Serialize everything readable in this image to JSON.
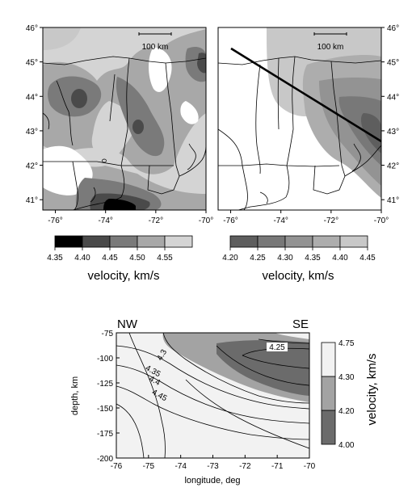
{
  "chart_data": [
    {
      "type": "heatmap",
      "panel": "map-left",
      "xlim": [
        -76.5,
        -70
      ],
      "ylim": [
        40.7,
        46
      ],
      "xticks": [
        "-76°",
        "-74°",
        "-72°",
        "-70°"
      ],
      "yticks": [
        "46°",
        "45°",
        "44°",
        "43°",
        "42°",
        "41°"
      ],
      "scale_label": "100 km",
      "legend": {
        "bins": [
          4.35,
          4.4,
          4.45,
          4.5,
          4.55
        ],
        "tick_labels": [
          "4.35",
          "4.40",
          "4.45",
          "4.50",
          "4.55"
        ],
        "colors": [
          "#000000",
          "#4a4a4a",
          "#7a7a7a",
          "#a8a8a8",
          "#d4d4d4"
        ],
        "label": "velocity, km/s"
      }
    },
    {
      "type": "heatmap",
      "panel": "map-right",
      "xlim": [
        -76.5,
        -70
      ],
      "ylim": [
        40.7,
        46
      ],
      "xticks": [
        "-76°",
        "-74°",
        "-72°",
        "-70°"
      ],
      "yticks": [
        "46°",
        "45°",
        "44°",
        "43°",
        "42°",
        "41°"
      ],
      "scale_label": "100 km",
      "legend": {
        "bins": [
          4.2,
          4.25,
          4.3,
          4.35,
          4.4,
          4.45
        ],
        "tick_labels": [
          "4.20",
          "4.25",
          "4.30",
          "4.35",
          "4.40",
          "4.45"
        ],
        "colors": [
          "#5e5e5e",
          "#787878",
          "#939393",
          "#adadad",
          "#c8c8c8"
        ],
        "label": "velocity, km/s"
      }
    },
    {
      "type": "heatmap",
      "panel": "cross-section",
      "corner_labels": {
        "left": "NW",
        "right": "SE"
      },
      "xlabel": "longitude, deg",
      "ylabel": "depth, km",
      "xlim": [
        -76,
        -70
      ],
      "ylim": [
        -200,
        -75
      ],
      "xticks": [
        "-76",
        "-75",
        "-74",
        "-73",
        "-72",
        "-71",
        "-70"
      ],
      "yticks": [
        "-75",
        "-100",
        "-125",
        "-150",
        "-175",
        "-200"
      ],
      "contour_labels": [
        "4.3",
        "4.35",
        "4.4",
        "4.45",
        "4.25"
      ],
      "legend": {
        "bins": [
          4.0,
          4.2,
          4.3,
          4.75
        ],
        "tick_labels": [
          "4.75",
          "4.30",
          "4.20",
          "4.00"
        ],
        "colors": [
          "#6b6b6b",
          "#a3a3a3",
          "#f2f2f2"
        ],
        "label": "velocity, km/s"
      }
    }
  ]
}
